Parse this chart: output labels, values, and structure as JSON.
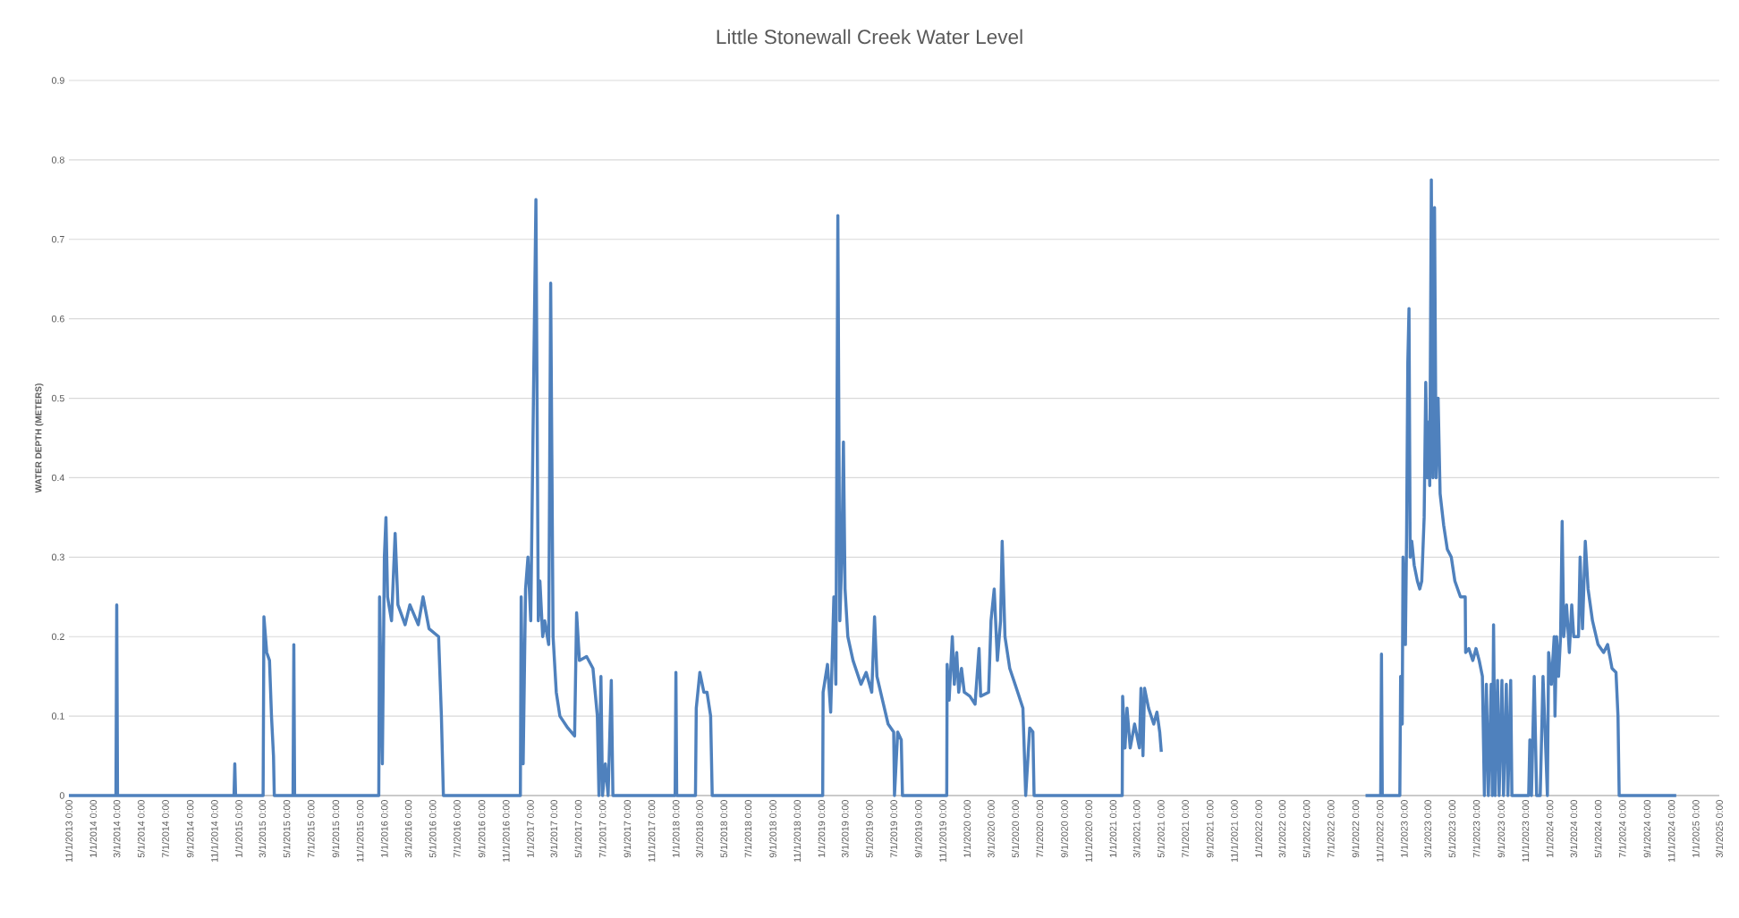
{
  "chart_data": {
    "type": "line",
    "title": "Little Stonewall Creek Water Level",
    "ylabel": "WATER DEPTH (METERS)",
    "color": "#4f81bd",
    "marker": "none",
    "line_style": "solid",
    "grid": "y",
    "ylim": [
      0,
      0.9
    ],
    "yticks": [
      0,
      0.1,
      0.2,
      0.3,
      0.4,
      0.5,
      0.6,
      0.7,
      0.8,
      0.9
    ],
    "xlim": [
      "2013-11-01",
      "2025-03-01"
    ],
    "xticks": [
      {
        "value": "2013-11-01",
        "label": "11/1/2013 0:00"
      },
      {
        "value": "2014-01-01",
        "label": "1/1/2014 0:00"
      },
      {
        "value": "2014-03-01",
        "label": "3/1/2014 0:00"
      },
      {
        "value": "2014-05-01",
        "label": "5/1/2014 0:00"
      },
      {
        "value": "2014-07-01",
        "label": "7/1/2014 0:00"
      },
      {
        "value": "2014-09-01",
        "label": "9/1/2014 0:00"
      },
      {
        "value": "2014-11-01",
        "label": "11/1/2014 0:00"
      },
      {
        "value": "2015-01-01",
        "label": "1/1/2015 0:00"
      },
      {
        "value": "2015-03-01",
        "label": "3/1/2015 0:00"
      },
      {
        "value": "2015-05-01",
        "label": "5/1/2015 0:00"
      },
      {
        "value": "2015-07-01",
        "label": "7/1/2015 0:00"
      },
      {
        "value": "2015-09-01",
        "label": "9/1/2015 0:00"
      },
      {
        "value": "2015-11-01",
        "label": "11/1/2015 0:00"
      },
      {
        "value": "2016-01-01",
        "label": "1/1/2016 0:00"
      },
      {
        "value": "2016-03-01",
        "label": "3/1/2016 0:00"
      },
      {
        "value": "2016-05-01",
        "label": "5/1/2016 0:00"
      },
      {
        "value": "2016-07-01",
        "label": "7/1/2016 0:00"
      },
      {
        "value": "2016-09-01",
        "label": "9/1/2016 0:00"
      },
      {
        "value": "2016-11-01",
        "label": "11/1/2016 0:00"
      },
      {
        "value": "2017-01-01",
        "label": "1/1/2017 0:00"
      },
      {
        "value": "2017-03-01",
        "label": "3/1/2017 0:00"
      },
      {
        "value": "2017-05-01",
        "label": "5/1/2017 0:00"
      },
      {
        "value": "2017-07-01",
        "label": "7/1/2017 0:00"
      },
      {
        "value": "2017-09-01",
        "label": "9/1/2017 0:00"
      },
      {
        "value": "2017-11-01",
        "label": "11/1/2017 0:00"
      },
      {
        "value": "2018-01-01",
        "label": "1/1/2018 0:00"
      },
      {
        "value": "2018-03-01",
        "label": "3/1/2018 0:00"
      },
      {
        "value": "2018-05-01",
        "label": "5/1/2018 0:00"
      },
      {
        "value": "2018-07-01",
        "label": "7/1/2018 0:00"
      },
      {
        "value": "2018-09-01",
        "label": "9/1/2018 0:00"
      },
      {
        "value": "2018-11-01",
        "label": "11/1/2018 0:00"
      },
      {
        "value": "2019-01-01",
        "label": "1/1/2019 0:00"
      },
      {
        "value": "2019-03-01",
        "label": "3/1/2019 0:00"
      },
      {
        "value": "2019-05-01",
        "label": "5/1/2019 0:00"
      },
      {
        "value": "2019-07-01",
        "label": "7/1/2019 0:00"
      },
      {
        "value": "2019-09-01",
        "label": "9/1/2019 0:00"
      },
      {
        "value": "2019-11-01",
        "label": "11/1/2019 0:00"
      },
      {
        "value": "2020-01-01",
        "label": "1/1/2020 0:00"
      },
      {
        "value": "2020-03-01",
        "label": "3/1/2020 0:00"
      },
      {
        "value": "2020-05-01",
        "label": "5/1/2020 0:00"
      },
      {
        "value": "2020-07-01",
        "label": "7/1/2020 0:00"
      },
      {
        "value": "2020-09-01",
        "label": "9/1/2020 0:00"
      },
      {
        "value": "2020-11-01",
        "label": "11/1/2020 0:00"
      },
      {
        "value": "2021-01-01",
        "label": "1/1/2021 0:00"
      },
      {
        "value": "2021-03-01",
        "label": "3/1/2021 0:00"
      },
      {
        "value": "2021-05-01",
        "label": "5/1/2021 0:00"
      },
      {
        "value": "2021-07-01",
        "label": "7/1/2021 0:00"
      },
      {
        "value": "2021-09-01",
        "label": "9/1/2021 0:00"
      },
      {
        "value": "2021-11-01",
        "label": "11/1/2021 0:00"
      },
      {
        "value": "2022-01-01",
        "label": "1/1/2022 0:00"
      },
      {
        "value": "2022-03-01",
        "label": "3/1/2022 0:00"
      },
      {
        "value": "2022-05-01",
        "label": "5/1/2022 0:00"
      },
      {
        "value": "2022-07-01",
        "label": "7/1/2022 0:00"
      },
      {
        "value": "2022-09-01",
        "label": "9/1/2022 0:00"
      },
      {
        "value": "2022-11-01",
        "label": "11/1/2022 0:00"
      },
      {
        "value": "2023-01-01",
        "label": "1/1/2023 0:00"
      },
      {
        "value": "2023-03-01",
        "label": "3/1/2023 0:00"
      },
      {
        "value": "2023-05-01",
        "label": "5/1/2023 0:00"
      },
      {
        "value": "2023-07-01",
        "label": "7/1/2023 0:00"
      },
      {
        "value": "2023-09-01",
        "label": "9/1/2023 0:00"
      },
      {
        "value": "2023-11-01",
        "label": "11/1/2023 0:00"
      },
      {
        "value": "2024-01-01",
        "label": "1/1/2024 0:00"
      },
      {
        "value": "2024-03-01",
        "label": "3/1/2024 0:00"
      },
      {
        "value": "2024-05-01",
        "label": "5/1/2024 0:00"
      },
      {
        "value": "2024-07-01",
        "label": "7/1/2024 0:00"
      },
      {
        "value": "2024-09-01",
        "label": "9/1/2024 0:00"
      },
      {
        "value": "2024-11-01",
        "label": "11/1/2024 0:00"
      },
      {
        "value": "2025-01-01",
        "label": "1/1/2025 0:00"
      },
      {
        "value": "2025-03-01",
        "label": "3/1/2025 0:00"
      }
    ],
    "x": [
      "2013-11-01",
      "2014-02-27",
      "2014-03-01",
      "2014-03-03",
      "2014-12-20",
      "2014-12-22",
      "2014-12-24",
      "2015-03-03",
      "2015-03-05",
      "2015-03-12",
      "2015-03-19",
      "2015-03-24",
      "2015-03-29",
      "2015-03-31",
      "2015-05-17",
      "2015-05-19",
      "2015-05-21",
      "2015-12-18",
      "2015-12-20",
      "2015-12-27",
      "2016-01-01",
      "2016-01-05",
      "2016-01-09",
      "2016-01-19",
      "2016-01-28",
      "2016-02-04",
      "2016-02-22",
      "2016-03-05",
      "2016-03-26",
      "2016-04-07",
      "2016-04-22",
      "2016-05-16",
      "2016-05-23",
      "2016-05-28",
      "2016-12-07",
      "2016-12-09",
      "2016-12-14",
      "2016-12-20",
      "2016-12-26",
      "2017-01-02",
      "2017-01-10",
      "2017-01-15",
      "2017-01-21",
      "2017-01-25",
      "2017-02-01",
      "2017-02-06",
      "2017-02-16",
      "2017-02-21",
      "2017-02-27",
      "2017-03-07",
      "2017-03-16",
      "2017-04-05",
      "2017-04-22",
      "2017-04-27",
      "2017-05-04",
      "2017-05-22",
      "2017-06-07",
      "2017-06-18",
      "2017-06-22",
      "2017-06-27",
      "2017-07-01",
      "2017-07-08",
      "2017-07-15",
      "2017-07-23",
      "2017-07-27",
      "2017-12-30",
      "2018-01-01",
      "2018-01-03",
      "2018-02-19",
      "2018-02-21",
      "2018-03-02",
      "2018-03-12",
      "2018-03-20",
      "2018-03-29",
      "2018-04-02",
      "2019-01-04",
      "2019-01-05",
      "2019-01-16",
      "2019-01-24",
      "2019-02-01",
      "2019-02-06",
      "2019-02-11",
      "2019-02-16",
      "2019-02-21",
      "2019-02-25",
      "2019-03-01",
      "2019-03-08",
      "2019-03-21",
      "2019-04-10",
      "2019-04-23",
      "2019-05-07",
      "2019-05-14",
      "2019-05-20",
      "2019-06-03",
      "2019-06-17",
      "2019-07-01",
      "2019-07-03",
      "2019-07-11",
      "2019-07-20",
      "2019-07-23",
      "2019-11-11",
      "2019-11-12",
      "2019-11-17",
      "2019-11-25",
      "2019-11-30",
      "2019-12-06",
      "2019-12-11",
      "2019-12-18",
      "2019-12-25",
      "2020-01-08",
      "2020-01-21",
      "2020-01-31",
      "2020-02-04",
      "2020-02-24",
      "2020-03-01",
      "2020-03-09",
      "2020-03-17",
      "2020-03-25",
      "2020-03-29",
      "2020-04-05",
      "2020-04-17",
      "2020-05-07",
      "2020-05-20",
      "2020-05-27",
      "2020-06-06",
      "2020-06-14",
      "2020-06-17",
      "2021-01-24",
      "2021-01-25",
      "2021-01-31",
      "2021-02-05",
      "2021-02-13",
      "2021-02-24",
      "2021-03-08",
      "2021-03-12",
      "2021-03-17",
      "2021-03-21",
      "2021-03-31",
      "2021-04-13",
      "2021-04-21",
      "2021-04-28",
      "2021-05-02",
      "2022-01-01",
      "2022-09-26",
      "2022-11-03",
      "2022-11-05",
      "2022-11-07",
      "2022-12-21",
      "2022-12-23",
      "2022-12-27",
      "2022-12-29",
      "2023-01-04",
      "2023-01-07",
      "2023-01-10",
      "2023-01-13",
      "2023-01-16",
      "2023-01-20",
      "2023-01-26",
      "2023-02-03",
      "2023-02-09",
      "2023-02-14",
      "2023-02-20",
      "2023-02-24",
      "2023-02-28",
      "2023-03-03",
      "2023-03-06",
      "2023-03-10",
      "2023-03-14",
      "2023-03-18",
      "2023-03-22",
      "2023-03-27",
      "2023-04-01",
      "2023-04-10",
      "2023-04-19",
      "2023-04-29",
      "2023-05-08",
      "2023-05-22",
      "2023-06-03",
      "2023-06-04",
      "2023-06-12",
      "2023-06-22",
      "2023-06-30",
      "2023-07-08",
      "2023-07-16",
      "2023-07-21",
      "2023-07-26",
      "2023-07-31",
      "2023-08-07",
      "2023-08-10",
      "2023-08-13",
      "2023-08-17",
      "2023-08-23",
      "2023-08-27",
      "2023-09-03",
      "2023-09-07",
      "2023-09-14",
      "2023-09-18",
      "2023-09-25",
      "2023-09-28",
      "2023-11-09",
      "2023-11-12",
      "2023-11-16",
      "2023-11-23",
      "2023-11-29",
      "2023-12-08",
      "2023-12-15",
      "2023-12-21",
      "2023-12-26",
      "2023-12-29",
      "2024-01-05",
      "2024-01-12",
      "2024-01-14",
      "2024-01-18",
      "2024-01-23",
      "2024-01-28",
      "2024-02-01",
      "2024-02-05",
      "2024-02-12",
      "2024-02-19",
      "2024-02-25",
      "2024-03-01",
      "2024-03-13",
      "2024-03-17",
      "2024-03-23",
      "2024-03-30",
      "2024-04-06",
      "2024-04-17",
      "2024-05-01",
      "2024-05-15",
      "2024-05-25",
      "2024-06-05",
      "2024-06-15",
      "2024-06-20",
      "2024-06-23",
      "2024-11-13"
    ],
    "values": [
      0,
      0,
      0.24,
      0,
      0,
      0.04,
      0,
      0,
      0.225,
      0.18,
      0.17,
      0.1,
      0.05,
      0,
      0,
      0.19,
      0,
      0,
      0.25,
      0.04,
      0.3,
      0.35,
      0.25,
      0.22,
      0.33,
      0.24,
      0.215,
      0.24,
      0.215,
      0.25,
      0.21,
      0.2,
      0.1,
      0,
      0,
      0.25,
      0.04,
      0.26,
      0.3,
      0.22,
      0.55,
      0.75,
      0.22,
      0.27,
      0.2,
      0.22,
      0.19,
      0.645,
      0.2,
      0.13,
      0.1,
      0.085,
      0.075,
      0.23,
      0.17,
      0.175,
      0.16,
      0.1,
      0,
      0.15,
      0,
      0.04,
      0,
      0.145,
      0,
      0,
      0.155,
      0,
      0,
      0.11,
      0.155,
      0.13,
      0.13,
      0.1,
      0,
      0,
      0.13,
      0.165,
      0.105,
      0.25,
      0.14,
      0.73,
      0.22,
      0.3,
      0.445,
      0.26,
      0.2,
      0.17,
      0.14,
      0.155,
      0.13,
      0.225,
      0.15,
      0.12,
      0.09,
      0.08,
      0,
      0.08,
      0.07,
      0,
      0,
      0.165,
      0.12,
      0.2,
      0.14,
      0.18,
      0.13,
      0.16,
      0.13,
      0.125,
      0.115,
      0.185,
      0.125,
      0.13,
      0.22,
      0.26,
      0.17,
      0.22,
      0.32,
      0.2,
      0.16,
      0.13,
      0.11,
      0,
      0.085,
      0.08,
      0,
      0,
      0.125,
      0.06,
      0.11,
      0.06,
      0.09,
      0.06,
      0.135,
      0.05,
      0.135,
      0.11,
      0.09,
      0.105,
      0.08,
      0.055,
      null,
      0,
      0,
      0.178,
      0,
      0,
      0.15,
      0.09,
      0.3,
      0.19,
      0.33,
      0.545,
      0.613,
      0.3,
      0.32,
      0.29,
      0.27,
      0.26,
      0.27,
      0.35,
      0.52,
      0.4,
      0.47,
      0.39,
      0.775,
      0.4,
      0.74,
      0.4,
      0.5,
      0.38,
      0.34,
      0.31,
      0.3,
      0.27,
      0.25,
      0.25,
      0.18,
      0.185,
      0.17,
      0.185,
      0.17,
      0.15,
      0,
      0.14,
      0,
      0.14,
      0,
      0.215,
      0,
      0.145,
      0,
      0.145,
      0,
      0.14,
      0,
      0.145,
      0,
      0,
      0.07,
      0,
      0.15,
      0,
      0,
      0.15,
      0.07,
      0,
      0.18,
      0.14,
      0.2,
      0.1,
      0.2,
      0.15,
      0.2,
      0.345,
      0.2,
      0.24,
      0.18,
      0.24,
      0.2,
      0.2,
      0.3,
      0.21,
      0.32,
      0.26,
      0.22,
      0.19,
      0.18,
      0.19,
      0.16,
      0.155,
      0.1,
      0,
      0
    ]
  }
}
